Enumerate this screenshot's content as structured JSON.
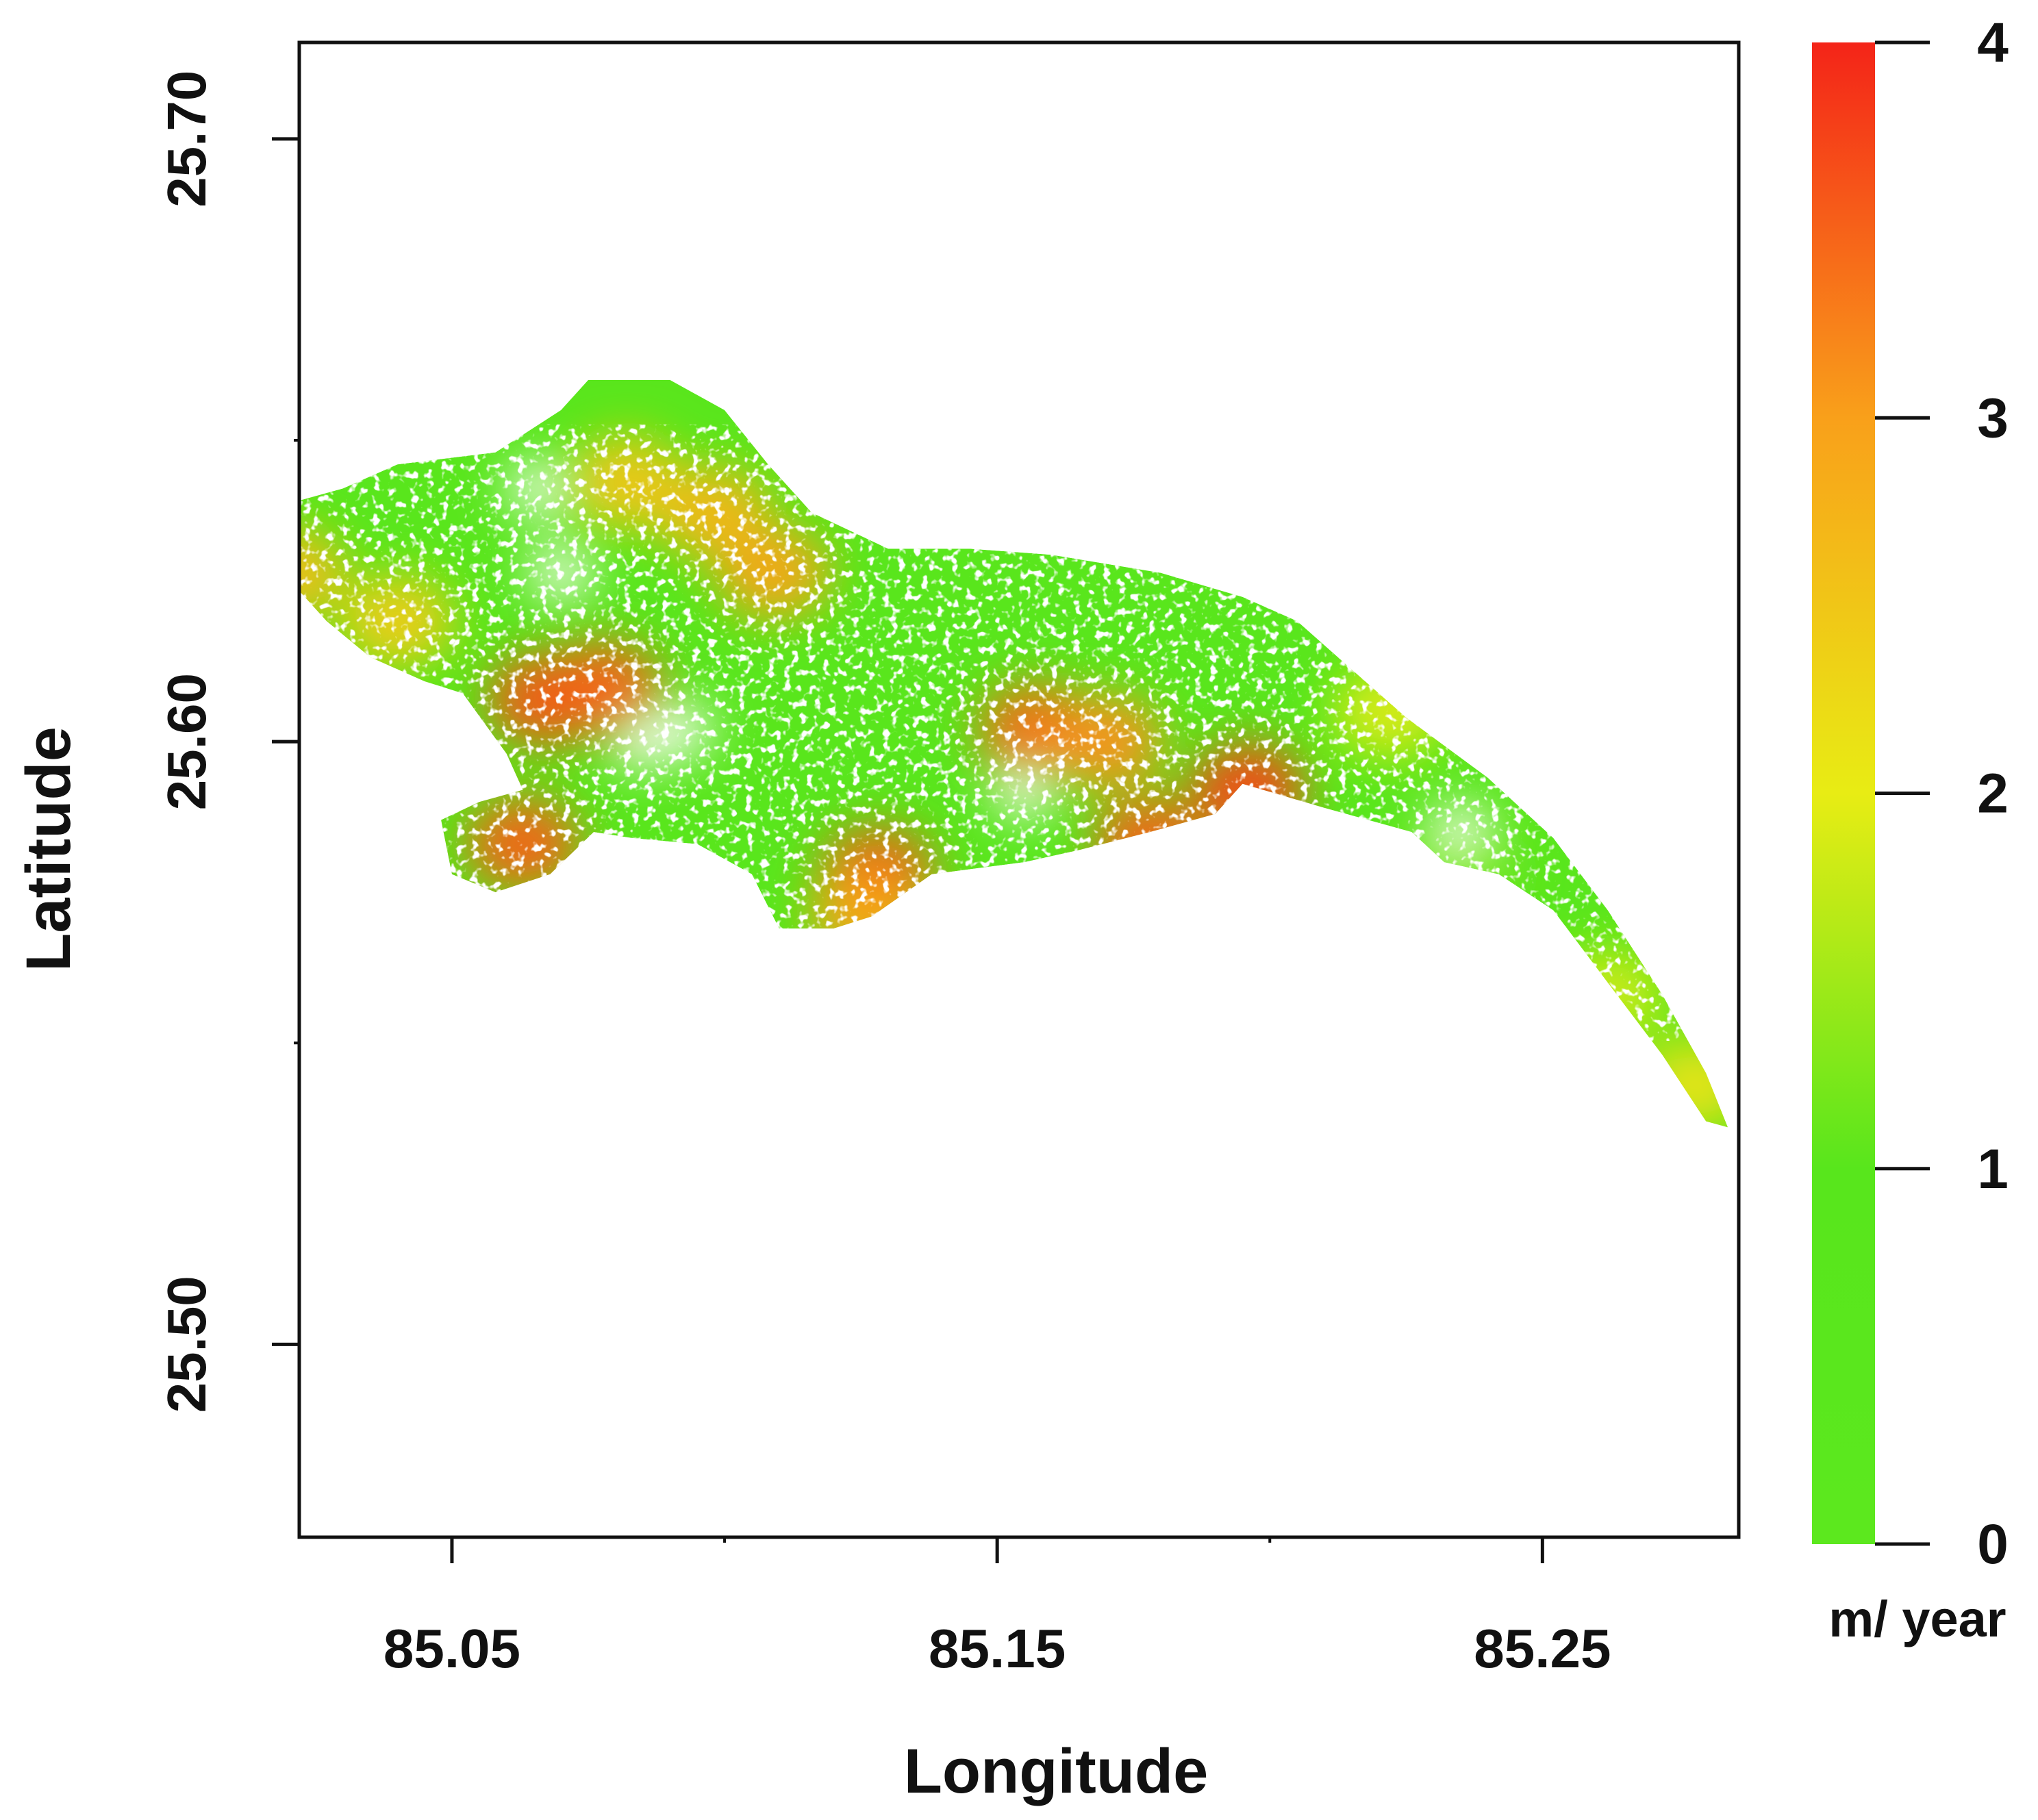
{
  "chart_data": {
    "type": "heatmap",
    "title": "",
    "xlabel": "Longitude",
    "ylabel": "Latitude",
    "xlim": [
      85.022,
      85.286
    ],
    "ylim": [
      25.468,
      25.716
    ],
    "x_ticks": [
      {
        "value": 85.05,
        "label": "85.05"
      },
      {
        "value": 85.15,
        "label": "85.15"
      },
      {
        "value": 85.25,
        "label": "85.25"
      }
    ],
    "x_minor_ticks": [
      85.1,
      85.2
    ],
    "y_ticks": [
      {
        "value": 25.5,
        "label": "25.50"
      },
      {
        "value": 25.6,
        "label": "25.60"
      },
      {
        "value": 25.7,
        "label": "25.70"
      }
    ],
    "y_minor_ticks": [
      25.55,
      25.65
    ],
    "colorbar": {
      "min": 0,
      "max": 4,
      "ticks": [
        {
          "value": 0,
          "label": "0"
        },
        {
          "value": 1,
          "label": "1"
        },
        {
          "value": 2,
          "label": "2"
        },
        {
          "value": 3,
          "label": "3"
        },
        {
          "value": 4,
          "label": "4"
        }
      ],
      "unit": "m/ year",
      "stops": [
        {
          "value": 0,
          "color": "#5ce81e"
        },
        {
          "value": 1,
          "color": "#58e61c"
        },
        {
          "value": 2,
          "color": "#e8ec14"
        },
        {
          "value": 3,
          "color": "#f9a01a"
        },
        {
          "value": 4,
          "color": "#f42418"
        }
      ]
    },
    "region": {
      "background_value": 0.8,
      "outline": [
        [
          85.022,
          25.64
        ],
        [
          85.03,
          25.642
        ],
        [
          85.04,
          25.646
        ],
        [
          85.058,
          25.648
        ],
        [
          85.07,
          25.655
        ],
        [
          85.075,
          25.66
        ],
        [
          85.09,
          25.66
        ],
        [
          85.1,
          25.655
        ],
        [
          85.108,
          25.646
        ],
        [
          85.116,
          25.638
        ],
        [
          85.13,
          25.632
        ],
        [
          85.145,
          25.632
        ],
        [
          85.16,
          25.631
        ],
        [
          85.18,
          25.628
        ],
        [
          85.195,
          25.624
        ],
        [
          85.205,
          25.62
        ],
        [
          85.215,
          25.612
        ],
        [
          85.225,
          25.604
        ],
        [
          85.24,
          25.594
        ],
        [
          85.252,
          25.584
        ],
        [
          85.262,
          25.572
        ],
        [
          85.272,
          25.558
        ],
        [
          85.28,
          25.545
        ],
        [
          85.284,
          25.536
        ],
        [
          85.28,
          25.537
        ],
        [
          85.272,
          25.548
        ],
        [
          85.262,
          25.56
        ],
        [
          85.252,
          25.572
        ],
        [
          85.242,
          25.578
        ],
        [
          85.232,
          25.58
        ],
        [
          85.226,
          25.585
        ],
        [
          85.21,
          25.589
        ],
        [
          85.195,
          25.593
        ],
        [
          85.19,
          25.588
        ],
        [
          85.178,
          25.585
        ],
        [
          85.165,
          25.582
        ],
        [
          85.155,
          25.58
        ],
        [
          85.138,
          25.578
        ],
        [
          85.127,
          25.571
        ],
        [
          85.12,
          25.569
        ],
        [
          85.11,
          25.569
        ],
        [
          85.105,
          25.578
        ],
        [
          85.095,
          25.583
        ],
        [
          85.083,
          25.584
        ],
        [
          85.076,
          25.585
        ],
        [
          85.068,
          25.578
        ],
        [
          85.058,
          25.575
        ],
        [
          85.05,
          25.578
        ],
        [
          85.048,
          25.587
        ],
        [
          85.055,
          25.59
        ],
        [
          85.063,
          25.592
        ],
        [
          85.06,
          25.598
        ],
        [
          85.052,
          25.608
        ],
        [
          85.045,
          25.61
        ],
        [
          85.035,
          25.614
        ],
        [
          85.027,
          25.62
        ],
        [
          85.022,
          25.625
        ]
      ],
      "hotspots": [
        {
          "lon": 85.098,
          "lat": 25.638,
          "value": 2.7
        },
        {
          "lon": 85.082,
          "lat": 25.643,
          "value": 2.5
        },
        {
          "lon": 85.109,
          "lat": 25.628,
          "value": 2.9
        },
        {
          "lon": 85.02,
          "lat": 25.628,
          "value": 2.6
        },
        {
          "lon": 85.04,
          "lat": 25.62,
          "value": 2.4
        },
        {
          "lon": 85.067,
          "lat": 25.607,
          "value": 3.6
        },
        {
          "lon": 85.078,
          "lat": 25.609,
          "value": 3.5
        },
        {
          "lon": 85.157,
          "lat": 25.602,
          "value": 3.4
        },
        {
          "lon": 85.17,
          "lat": 25.6,
          "value": 3.1
        },
        {
          "lon": 85.196,
          "lat": 25.592,
          "value": 3.7
        },
        {
          "lon": 85.178,
          "lat": 25.583,
          "value": 3.5
        },
        {
          "lon": 85.063,
          "lat": 25.583,
          "value": 3.5
        },
        {
          "lon": 85.128,
          "lat": 25.578,
          "value": 3.6
        },
        {
          "lon": 85.126,
          "lat": 25.571,
          "value": 2.9
        },
        {
          "lon": 85.235,
          "lat": 25.578,
          "value": 1.2
        },
        {
          "lon": 85.262,
          "lat": 25.558,
          "value": 1.8
        },
        {
          "lon": 85.278,
          "lat": 25.543,
          "value": 2.1
        },
        {
          "lon": 85.222,
          "lat": 25.605,
          "value": 1.9
        }
      ],
      "gaps": [
        {
          "lon": 85.066,
          "lat": 25.642
        },
        {
          "lon": 85.07,
          "lat": 25.628
        },
        {
          "lon": 85.085,
          "lat": 25.6
        },
        {
          "lon": 85.092,
          "lat": 25.602
        },
        {
          "lon": 85.155,
          "lat": 25.592
        },
        {
          "lon": 85.235,
          "lat": 25.585
        }
      ]
    }
  }
}
